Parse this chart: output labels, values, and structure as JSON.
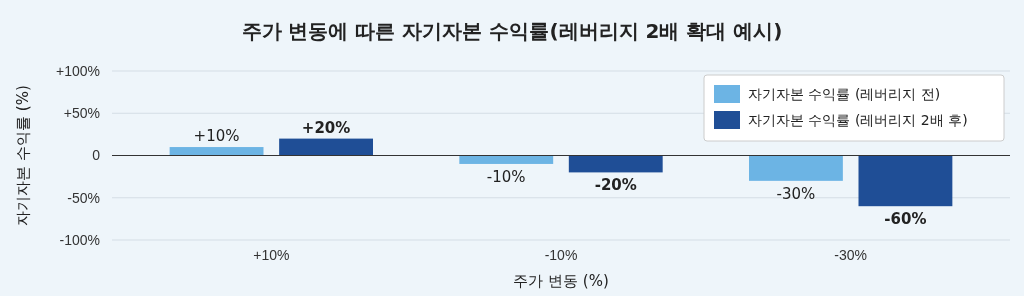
{
  "chart_data": {
    "type": "bar",
    "title": "주가 변동에 따른 자기자본 수익률(레버리지 2배 확대 예시)",
    "xlabel": "주가 변동 (%)",
    "ylabel": "자기자본 수익률 (%)",
    "categories": [
      "+10%",
      "-10%",
      "-30%"
    ],
    "series": [
      {
        "name": "자기자본 수익률 (레버리지 전)",
        "color": "#6cb4e4",
        "values": [
          10,
          -10,
          -30
        ],
        "value_labels": [
          "+10%",
          "-10%",
          "-30%"
        ]
      },
      {
        "name": "자기자본 수익률 (레버리지 2배 후)",
        "color": "#1f4e96",
        "values": [
          20,
          -20,
          -60
        ],
        "value_labels": [
          "+20%",
          "-20%",
          "-60%"
        ]
      }
    ],
    "ylim": [
      -100,
      100
    ],
    "yticks": [
      {
        "value": -100,
        "label": "-100%"
      },
      {
        "value": -50,
        "label": "-50%"
      },
      0,
      {
        "value": 50,
        "label": "+50%"
      },
      {
        "value": 100,
        "label": "+100%"
      }
    ],
    "grid": "y",
    "legend": "top right"
  }
}
